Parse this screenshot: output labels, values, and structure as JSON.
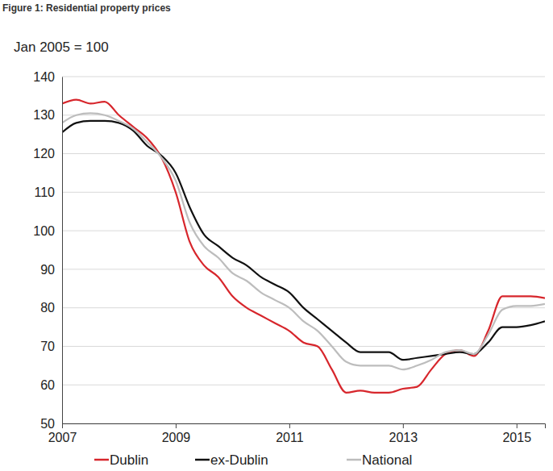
{
  "chart_data": {
    "type": "line",
    "title": "Figure 1: Residential property prices",
    "subtitle": "Jan 2005 = 100",
    "x": [
      2007,
      2007.25,
      2007.5,
      2007.75,
      2008,
      2008.25,
      2008.5,
      2008.75,
      2009,
      2009.25,
      2009.5,
      2009.75,
      2010,
      2010.25,
      2010.5,
      2010.75,
      2011,
      2011.25,
      2011.5,
      2011.75,
      2012,
      2012.25,
      2012.5,
      2012.75,
      2013,
      2013.25,
      2013.5,
      2013.75,
      2014,
      2014.25,
      2014.5,
      2014.75,
      2015,
      2015.25,
      2015.5
    ],
    "series": [
      {
        "name": "Dublin",
        "color": "#d7262c",
        "values": [
          133,
          134,
          133,
          133.5,
          130,
          127,
          124,
          119,
          110,
          97,
          91,
          88,
          83,
          80,
          78,
          76,
          74,
          71,
          70,
          64,
          58,
          58.5,
          58,
          58,
          59,
          59.5,
          64,
          68,
          69,
          67.5,
          74,
          83,
          83,
          83,
          82.5
        ]
      },
      {
        "name": "ex-Dublin",
        "color": "#111111",
        "values": [
          125.5,
          128,
          128.5,
          128.5,
          128,
          126,
          122,
          119.5,
          115,
          106,
          99,
          96,
          93,
          91,
          88,
          86,
          84,
          80,
          77,
          74,
          71,
          68.5,
          68.5,
          68.5,
          66.5,
          67,
          67.5,
          68,
          68.5,
          68,
          71,
          75,
          75,
          75.5,
          76.5
        ]
      },
      {
        "name": "National",
        "color": "#bdbdbd",
        "values": [
          128,
          130,
          130.5,
          130,
          128.5,
          126.5,
          123,
          119,
          113,
          102,
          96,
          93,
          89,
          87,
          84,
          82,
          80,
          76.5,
          74,
          70,
          66,
          65,
          65,
          65,
          64,
          65,
          66.5,
          68.5,
          69,
          68,
          73,
          79.5,
          80.5,
          80.5,
          81
        ]
      }
    ],
    "xlim": [
      2007,
      2015.5
    ],
    "xticks": [
      2007,
      2009,
      2011,
      2013,
      2015
    ],
    "ylim": [
      50,
      140
    ],
    "yticks": [
      50,
      60,
      70,
      80,
      90,
      100,
      110,
      120,
      130,
      140
    ],
    "grid": true,
    "legend": "bottom"
  }
}
